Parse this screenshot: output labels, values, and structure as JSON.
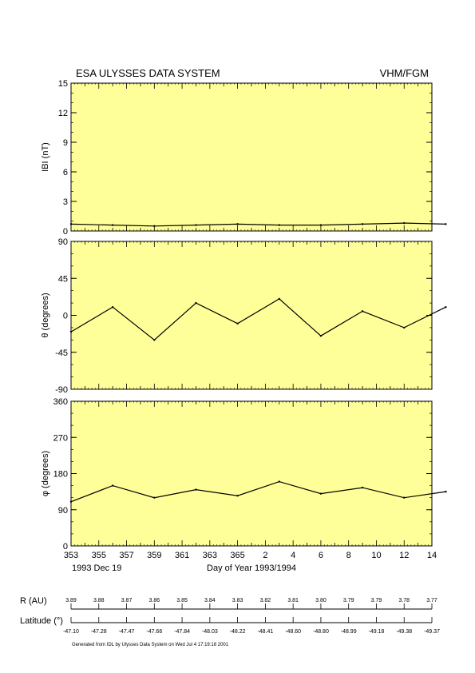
{
  "header": {
    "title": "ESA ULYSSES DATA SYSTEM",
    "instrument": "VHM/FGM"
  },
  "colors": {
    "panel_bg": "#ffff99",
    "line": "#000000"
  },
  "chart_data": [
    {
      "type": "line",
      "ylabel": "IBI (nT)",
      "ylim": [
        0,
        15
      ],
      "yticks": [
        "15",
        "12",
        "9",
        "6",
        "3",
        "0"
      ],
      "x": [
        353,
        356,
        359,
        362,
        365,
        368,
        371,
        374,
        377,
        380
      ],
      "values": [
        0.7,
        0.6,
        0.5,
        0.6,
        0.7,
        0.6,
        0.6,
        0.7,
        0.8,
        0.7
      ]
    },
    {
      "type": "line",
      "ylabel": "θ (degrees)",
      "ylim": [
        -90,
        90
      ],
      "yticks": [
        "90",
        "45",
        "0",
        "-45",
        "-90"
      ],
      "x": [
        353,
        356,
        359,
        362,
        365,
        368,
        371,
        374,
        377,
        380
      ],
      "values": [
        -20,
        10,
        -30,
        15,
        -10,
        20,
        -25,
        5,
        -15,
        10
      ]
    },
    {
      "type": "line",
      "ylabel": "φ (degrees)",
      "ylim": [
        0,
        360
      ],
      "yticks": [
        "360",
        "270",
        "180",
        "90",
        "0"
      ],
      "x": [
        353,
        356,
        359,
        362,
        365,
        368,
        371,
        374,
        377,
        380
      ],
      "values": [
        110,
        150,
        120,
        140,
        125,
        160,
        130,
        145,
        120,
        135
      ]
    }
  ],
  "x_axis": {
    "range": [
      353,
      379
    ],
    "ticks": [
      "353",
      "355",
      "357",
      "359",
      "361",
      "363",
      "365",
      "2",
      "4",
      "6",
      "8",
      "10",
      "12",
      "14"
    ],
    "date_label": "1993 Dec 19",
    "label": "Day of Year 1993/1994"
  },
  "ephemeris": {
    "r_label": "R (AU)",
    "r_values": [
      "3.89",
      "3.88",
      "3.87",
      "3.86",
      "3.85",
      "3.84",
      "3.83",
      "3.82",
      "3.81",
      "3.80",
      "3.79",
      "3.79",
      "3.78",
      "3.77"
    ],
    "lat_label": "Latitude (°)",
    "lat_values": [
      "-47.10",
      "-47.28",
      "-47.47",
      "-47.66",
      "-47.84",
      "-48.03",
      "-48.22",
      "-48.41",
      "-48.60",
      "-48.80",
      "-48.99",
      "-49.18",
      "-49.38",
      "-49.37"
    ]
  },
  "footer": "Generated from IDL by Ulysses Data System on Wed Jul 4 17:19:18 2001"
}
